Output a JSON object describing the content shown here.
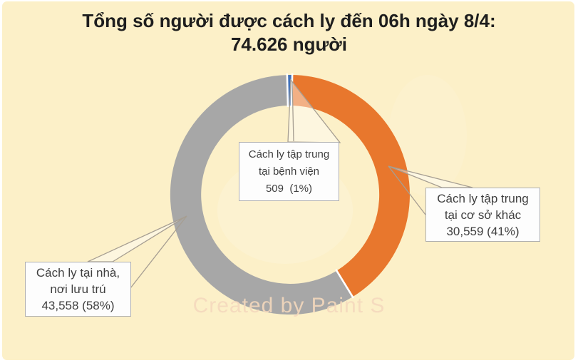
{
  "title": {
    "line1": "Tổng số người được cách ly đến 06h ngày 8/4:",
    "line2": "74.626 người"
  },
  "watermark_text": "Created by Paint S",
  "colors": {
    "background": "#FCF0C8",
    "segment_blue": "#4070B8",
    "segment_orange": "#E8772D",
    "segment_gray": "#A7A7A7",
    "title_text": "#1E1E1E",
    "label_text": "#3F3F3F",
    "label_border": "#B0B0B0",
    "leader_line": "#A69E92"
  },
  "chart_data": {
    "type": "pie",
    "subtype": "donut",
    "title": "Tổng số người được cách ly đến 06h ngày 8/4: 74.626 người",
    "total": 74626,
    "start_angle_deg": -1.4,
    "legend_position": "callout-labels",
    "grid": false,
    "segments": [
      {
        "key": "hospital",
        "label": "Cách ly tập trung tại bệnh viện",
        "value": 509,
        "percent": 1,
        "color": "#4070B8"
      },
      {
        "key": "other",
        "label": "Cách ly tập trung tại cơ sở khác",
        "value": 30559,
        "percent": 41,
        "color": "#E8772D"
      },
      {
        "key": "home",
        "label": "Cách ly tại nhà, nơi lưu trú",
        "value": 43558,
        "percent": 58,
        "color": "#A7A7A7"
      }
    ]
  },
  "callouts": {
    "hospital": {
      "line1": "Cách ly tập trung",
      "line2": "tại bệnh viện",
      "line3": "509  (1%)"
    },
    "other": {
      "line1": "Cách ly tập trung",
      "line2": "tại cơ sở khác",
      "line3": "30,559 (41%)"
    },
    "home": {
      "line1": "Cách ly tại nhà,",
      "line2": "nơi lưu trú",
      "line3": "43,558 (58%)"
    }
  }
}
